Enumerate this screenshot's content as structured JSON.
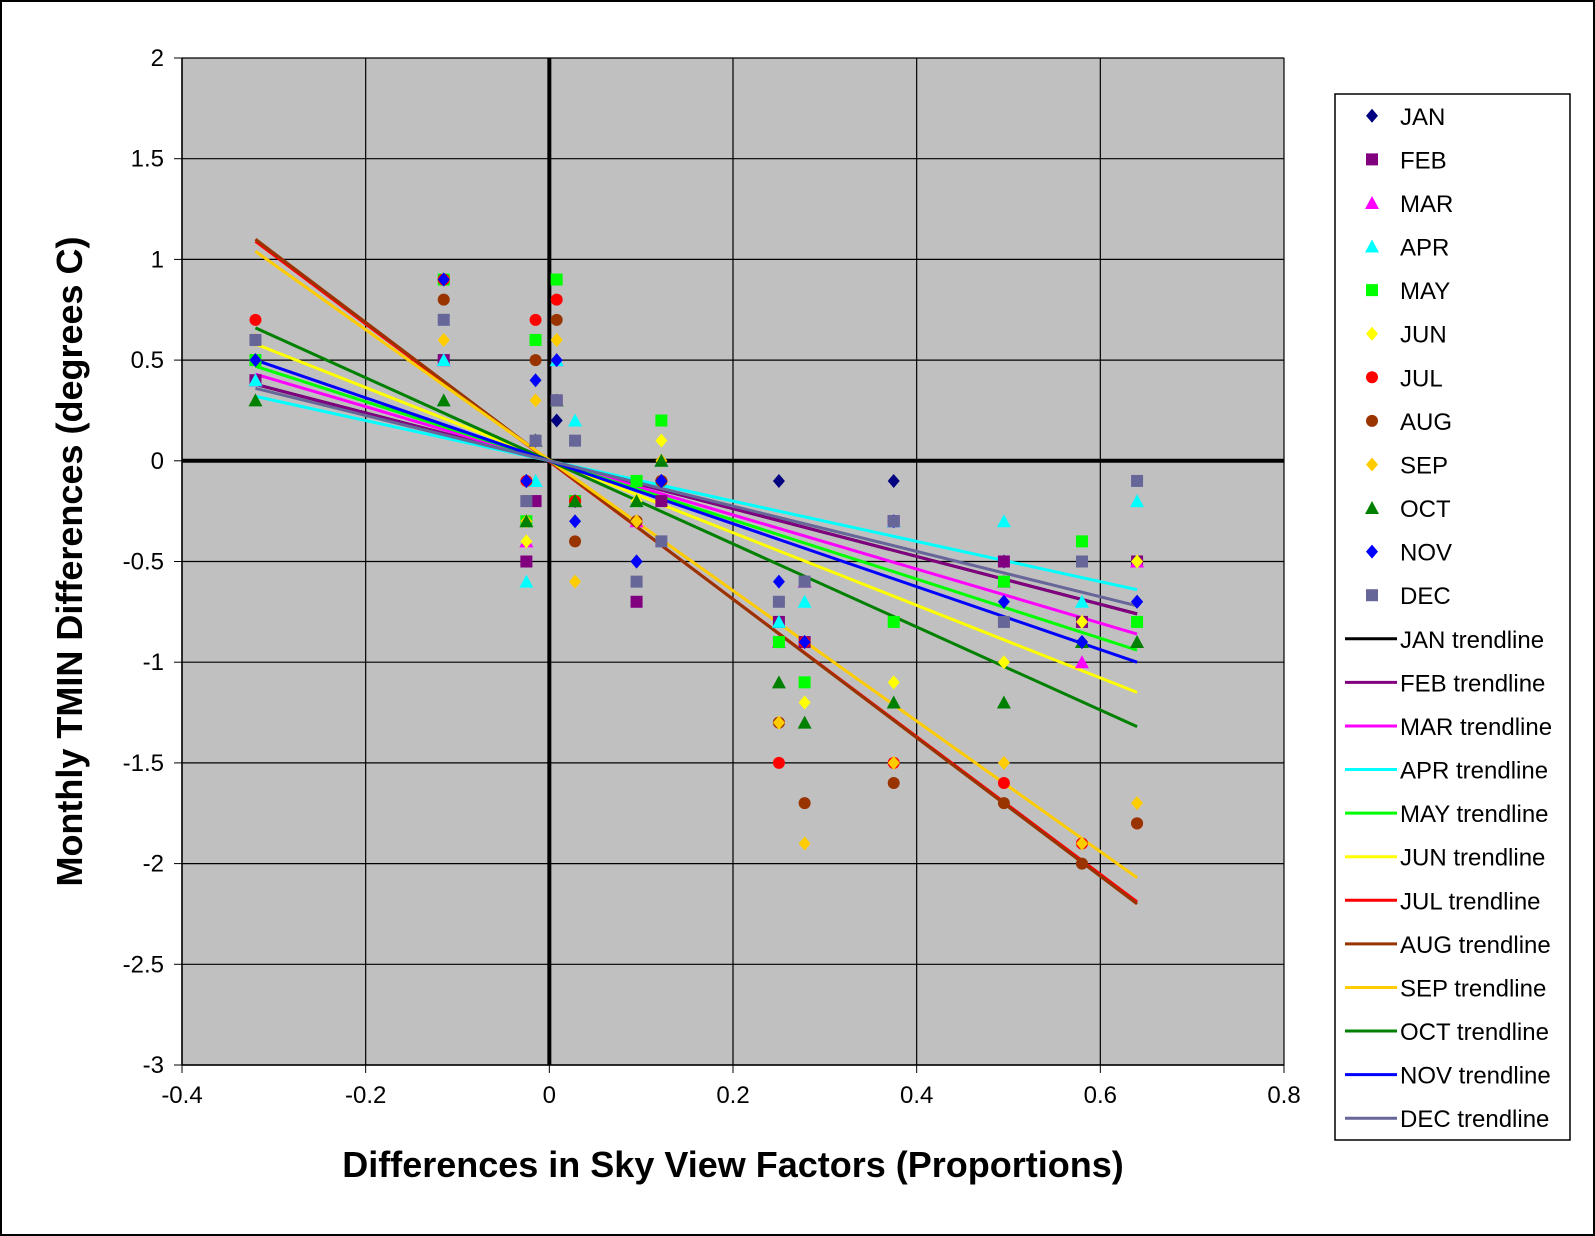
{
  "chart_data": {
    "type": "scatter",
    "title": "",
    "xlabel": "Differences in Sky View Factors (Proportions)",
    "ylabel": "Monthly TMIN Differences (degrees C)",
    "xlim": [
      -0.4,
      0.8
    ],
    "ylim": [
      -3,
      2
    ],
    "xticks": [
      -0.4,
      -0.2,
      0,
      0.2,
      0.4,
      0.6,
      0.8
    ],
    "yticks": [
      -3,
      -2.5,
      -2,
      -1.5,
      -1,
      -0.5,
      0,
      0.5,
      1,
      1.5,
      2
    ],
    "xtick_labels": [
      "-0.4",
      "-0.2",
      "0",
      "0.2",
      "0.4",
      "0.6",
      "0.8"
    ],
    "ytick_labels": [
      "-3",
      "-2.5",
      "-2",
      "-1.5",
      "-1",
      "-0.5",
      "0",
      "0.5",
      "1",
      "1.5",
      "2"
    ],
    "grid": true,
    "legend_position": "right",
    "x": [
      -0.32,
      -0.115,
      -0.025,
      -0.015,
      0.008,
      0.028,
      0.095,
      0.122,
      0.25,
      0.278,
      0.375,
      0.495,
      0.58,
      0.64
    ],
    "series": [
      {
        "name": "JAN",
        "marker": "diamond",
        "color": "#000080",
        "values": [
          0.5,
          0.9,
          -0.1,
          0.1,
          0.2,
          -0.2,
          -0.5,
          -0.1,
          -0.1,
          -0.9,
          -0.1,
          -0.5,
          -0.9,
          -0.7
        ]
      },
      {
        "name": "FEB",
        "marker": "square",
        "color": "#800080",
        "values": [
          0.4,
          0.5,
          -0.5,
          -0.2,
          0.3,
          -0.2,
          -0.7,
          -0.2,
          -0.8,
          -0.9,
          -0.3,
          -0.5,
          -0.8,
          -0.5
        ]
      },
      {
        "name": "MAR",
        "marker": "triangle",
        "color": "#ff00ff",
        "values": [
          0.4,
          0.5,
          -0.4,
          0.1,
          0.5,
          -0.2,
          -0.3,
          0.0,
          -0.9,
          -0.6,
          -0.3,
          -0.6,
          -1.0,
          -0.5
        ]
      },
      {
        "name": "APR",
        "marker": "triangle",
        "color": "#00ffff",
        "values": [
          0.4,
          0.5,
          -0.6,
          -0.1,
          0.5,
          0.2,
          -0.2,
          0.0,
          -0.8,
          -0.7,
          -0.3,
          -0.3,
          -0.7,
          -0.2
        ]
      },
      {
        "name": "MAY",
        "marker": "square",
        "color": "#00ff00",
        "values": [
          0.5,
          0.9,
          -0.3,
          0.6,
          0.9,
          -0.2,
          -0.1,
          0.2,
          -0.9,
          -1.1,
          -0.8,
          -0.6,
          -0.4,
          -0.8
        ]
      },
      {
        "name": "JUN",
        "marker": "diamond",
        "color": "#ffff00",
        "values": [
          0.5,
          0.6,
          -0.4,
          0.4,
          0.6,
          -0.3,
          -0.2,
          0.1,
          -1.3,
          -1.2,
          -1.1,
          -1.0,
          -0.8,
          -0.5
        ]
      },
      {
        "name": "JUL",
        "marker": "circle",
        "color": "#ff0000",
        "values": [
          0.7,
          0.9,
          -0.1,
          0.7,
          0.8,
          -0.2,
          -0.3,
          -0.1,
          -1.5,
          -0.9,
          -1.5,
          -1.6,
          -1.9,
          -1.8
        ]
      },
      {
        "name": "AUG",
        "marker": "circle",
        "color": "#993300",
        "values": [
          0.6,
          0.8,
          -0.2,
          0.5,
          0.7,
          -0.4,
          -0.3,
          -0.1,
          -1.3,
          -1.7,
          -1.6,
          -1.7,
          -2.0,
          -1.8
        ]
      },
      {
        "name": "SEP",
        "marker": "diamond",
        "color": "#ffcc00",
        "values": [
          0.6,
          0.6,
          -0.3,
          0.3,
          0.6,
          -0.6,
          -0.3,
          0.0,
          -1.3,
          -1.9,
          -1.5,
          -1.5,
          -1.9,
          -1.7
        ]
      },
      {
        "name": "OCT",
        "marker": "triangle",
        "color": "#008000",
        "values": [
          0.3,
          0.3,
          -0.3,
          0.1,
          0.3,
          -0.2,
          -0.2,
          0.0,
          -1.1,
          -1.3,
          -1.2,
          -1.2,
          -0.9,
          -0.9
        ]
      },
      {
        "name": "NOV",
        "marker": "diamond",
        "color": "#0000ff",
        "values": [
          0.5,
          0.9,
          -0.1,
          0.4,
          0.5,
          -0.3,
          -0.5,
          -0.1,
          -0.6,
          -0.9,
          -0.3,
          -0.7,
          -0.9,
          -0.7
        ]
      },
      {
        "name": "DEC",
        "marker": "square",
        "color": "#666699",
        "values": [
          0.6,
          0.7,
          -0.2,
          0.1,
          0.3,
          0.1,
          -0.6,
          -0.4,
          -0.7,
          -0.6,
          -0.3,
          -0.8,
          -0.5,
          -0.1
        ]
      }
    ],
    "trendlines": [
      {
        "name": "JAN trendline",
        "color": "#000000",
        "x": [
          -0.32,
          0.64
        ],
        "y": [
          0.38,
          -0.76
        ]
      },
      {
        "name": "FEB trendline",
        "color": "#800080",
        "x": [
          -0.32,
          0.64
        ],
        "y": [
          0.38,
          -0.76
        ]
      },
      {
        "name": "MAR trendline",
        "color": "#ff00ff",
        "x": [
          -0.32,
          0.64
        ],
        "y": [
          0.43,
          -0.86
        ]
      },
      {
        "name": "APR trendline",
        "color": "#00ffff",
        "x": [
          -0.32,
          0.64
        ],
        "y": [
          0.32,
          -0.64
        ]
      },
      {
        "name": "MAY trendline",
        "color": "#00ff00",
        "x": [
          -0.32,
          0.64
        ],
        "y": [
          0.47,
          -0.94
        ]
      },
      {
        "name": "JUN trendline",
        "color": "#ffff00",
        "x": [
          -0.32,
          0.64
        ],
        "y": [
          0.58,
          -1.15
        ]
      },
      {
        "name": "JUL trendline",
        "color": "#ff0000",
        "x": [
          -0.32,
          0.64
        ],
        "y": [
          1.09,
          -2.19
        ]
      },
      {
        "name": "AUG trendline",
        "color": "#993300",
        "x": [
          -0.32,
          0.64
        ],
        "y": [
          1.1,
          -2.2
        ]
      },
      {
        "name": "SEP trendline",
        "color": "#ffcc00",
        "x": [
          -0.32,
          0.64
        ],
        "y": [
          1.04,
          -2.07
        ]
      },
      {
        "name": "OCT trendline",
        "color": "#008000",
        "x": [
          -0.32,
          0.64
        ],
        "y": [
          0.66,
          -1.32
        ]
      },
      {
        "name": "NOV trendline",
        "color": "#0000ff",
        "x": [
          -0.32,
          0.64
        ],
        "y": [
          0.5,
          -1.0
        ]
      },
      {
        "name": "DEC trendline",
        "color": "#666699",
        "x": [
          -0.32,
          0.64
        ],
        "y": [
          0.36,
          -0.72
        ]
      }
    ],
    "colors": {
      "plot_background": "#c0c0c0",
      "gridline": "#000000"
    }
  }
}
